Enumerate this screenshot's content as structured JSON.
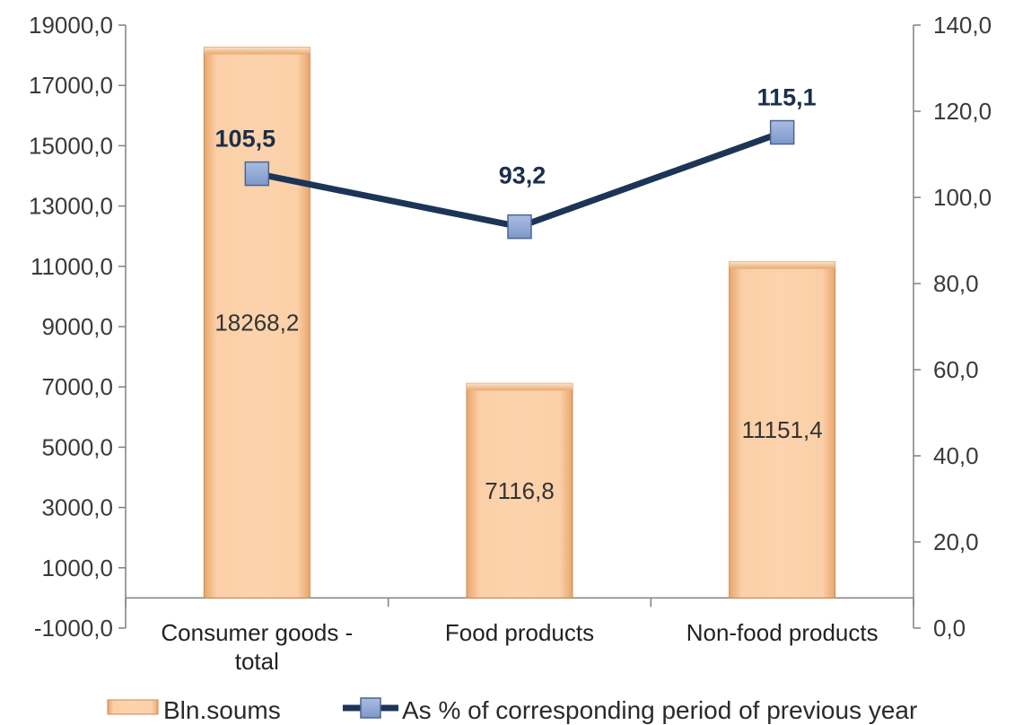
{
  "chart_data": {
    "type": "bar",
    "categories": [
      "Consumer goods - total",
      "Food products",
      "Non-food products"
    ],
    "category_lines": [
      [
        "Consumer goods -",
        "total"
      ],
      [
        "Food products"
      ],
      [
        "Non-food products"
      ]
    ],
    "series": [
      {
        "name": "Bln.soums",
        "type": "bar",
        "axis": "left",
        "values": [
          18268.2,
          7116.8,
          11151.4
        ],
        "labels": [
          "18268,2",
          "7116,8",
          "11151,4"
        ]
      },
      {
        "name": "As % of corresponding period of previous year",
        "type": "line",
        "axis": "right",
        "values": [
          105.5,
          93.2,
          115.1
        ],
        "labels": [
          "105,5",
          "93,2",
          "115,1"
        ]
      }
    ],
    "left_axis": {
      "ylim": [
        -1000,
        19000
      ],
      "ticks": [
        -1000,
        1000,
        3000,
        5000,
        7000,
        9000,
        11000,
        13000,
        15000,
        17000,
        19000
      ],
      "tick_labels": [
        "-1000,0",
        "1000,0",
        "3000,0",
        "5000,0",
        "7000,0",
        "9000,0",
        "11000,0",
        "13000,0",
        "15000,0",
        "17000,0",
        "19000,0"
      ]
    },
    "right_axis": {
      "ylim": [
        0,
        140
      ],
      "ticks": [
        0,
        20,
        40,
        60,
        80,
        100,
        120,
        140
      ],
      "tick_labels": [
        "0,0",
        "20,0",
        "40,0",
        "60,0",
        "80,0",
        "100,0",
        "120,0",
        "140,0"
      ]
    },
    "grid": false,
    "legend_position": "bottom",
    "colors": {
      "bar_fill": "#f9c08e",
      "bar_edge": "#c98a52",
      "line": "#1c3557",
      "marker": "#8fa8d4",
      "axis": "#808080"
    }
  }
}
